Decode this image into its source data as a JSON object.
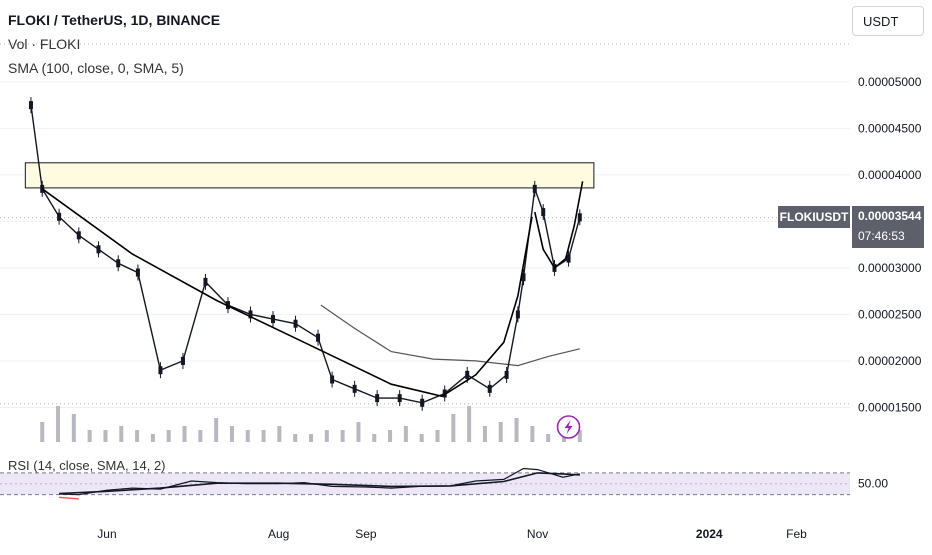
{
  "header": {
    "title": "FLOKI / TetherUS, 1D, BINANCE",
    "vol_label": "Vol · FLOKI",
    "sma_label": "SMA (100, close, 0, SMA, 5)",
    "rsi_label": "RSI (14, close, SMA, 14, 2)",
    "currency_button": "USDT"
  },
  "price_tag": {
    "symbol": "FLOKIUSDT",
    "price": "0.00003544",
    "countdown": "07:46:53"
  },
  "colors": {
    "up": "#26a69a",
    "down": "#ef5350",
    "candle": "#131722",
    "sma": "#555555",
    "rsi_band": "#ece6f7",
    "zone_fill": "#fffbe0",
    "lightning": "#9c27b0"
  },
  "chart_data": {
    "type": "line",
    "title": "FLOKI / TetherUS, 1D, BINANCE",
    "y_axis_ticks": [
      "0.00001500",
      "0.00002000",
      "0.00002500",
      "0.00003000",
      "0.00003500",
      "0.00004000",
      "0.00004500",
      "0.00005000"
    ],
    "y_axis_values": [
      1.5e-05,
      2e-05,
      2.5e-05,
      3e-05,
      3.5e-05,
      4e-05,
      4.5e-05,
      5e-05
    ],
    "x_axis_ticks": [
      "Jun",
      "Aug",
      "Sep",
      "Nov",
      "2024",
      "Feb"
    ],
    "rsi_ticks": [
      "50.00"
    ],
    "ylim": [
      1.15e-05,
      5.45e-05
    ],
    "price_series": {
      "name": "FLOKI / TetherUS",
      "x": [
        "2023-05-05",
        "2023-05-09",
        "2023-05-15",
        "2023-05-22",
        "2023-05-29",
        "2023-06-05",
        "2023-06-12",
        "2023-06-20",
        "2023-06-28",
        "2023-07-06",
        "2023-07-14",
        "2023-07-22",
        "2023-07-30",
        "2023-08-07",
        "2023-08-15",
        "2023-08-20",
        "2023-08-28",
        "2023-09-05",
        "2023-09-13",
        "2023-09-21",
        "2023-09-29",
        "2023-10-07",
        "2023-10-15",
        "2023-10-21",
        "2023-10-25",
        "2023-10-27",
        "2023-10-31",
        "2023-11-03",
        "2023-11-07",
        "2023-11-12",
        "2023-11-16"
      ],
      "y": [
        4.75e-05,
        3.85e-05,
        3.55e-05,
        3.35e-05,
        3.2e-05,
        3.05e-05,
        2.95e-05,
        1.9e-05,
        2e-05,
        2.85e-05,
        2.6e-05,
        2.5e-05,
        2.45e-05,
        2.4e-05,
        2.25e-05,
        1.8e-05,
        1.7e-05,
        1.6e-05,
        1.6e-05,
        1.55e-05,
        1.65e-05,
        1.85e-05,
        1.7e-05,
        1.85e-05,
        2.5e-05,
        2.9e-05,
        3.85e-05,
        3.6e-05,
        3e-05,
        3.1e-05,
        3.544e-05
      ]
    },
    "sma_series": {
      "x": [
        "2023-08-16",
        "2023-08-28",
        "2023-09-10",
        "2023-09-25",
        "2023-10-10",
        "2023-10-25",
        "2023-11-05",
        "2023-11-16"
      ],
      "y": [
        2.6e-05,
        2.35e-05,
        2.1e-05,
        2.02e-05,
        2e-05,
        1.95e-05,
        2.05e-05,
        2.13e-05
      ]
    },
    "annotations": {
      "resistance_zone": [
        3.86e-05,
        4.13e-05
      ],
      "cup_curve": {
        "x": [
          "2023-05-09",
          "2023-06-10",
          "2023-07-10",
          "2023-08-10",
          "2023-09-10",
          "2023-09-28",
          "2023-10-10",
          "2023-10-20",
          "2023-10-25",
          "2023-10-30"
        ],
        "y": [
          3.85e-05,
          3.15e-05,
          2.65e-05,
          2.2e-05,
          1.75e-05,
          1.62e-05,
          1.85e-05,
          2.2e-05,
          2.7e-05,
          3.55e-05
        ]
      },
      "handle_curve": {
        "x": [
          "2023-10-31",
          "2023-11-03",
          "2023-11-07",
          "2023-11-11",
          "2023-11-14",
          "2023-11-17"
        ],
        "y": [
          3.6e-05,
          3.2e-05,
          3e-05,
          3.1e-05,
          3.45e-05,
          3.93e-05
        ]
      }
    },
    "volume_values": [
      5,
      9,
      7,
      3,
      3,
      4,
      3,
      2,
      3,
      4,
      3,
      6,
      4,
      3,
      3,
      4,
      2,
      2,
      3,
      3,
      5,
      2,
      3,
      4,
      2,
      3,
      7,
      9,
      4,
      5,
      6,
      4,
      2,
      3,
      3
    ],
    "rsi_series": {
      "x": [
        "2023-05-15",
        "2023-05-22",
        "2023-06-01",
        "2023-06-10",
        "2023-06-20",
        "2023-07-01",
        "2023-07-10",
        "2023-07-20",
        "2023-08-01",
        "2023-08-10",
        "2023-08-20",
        "2023-09-01",
        "2023-09-10",
        "2023-09-20",
        "2023-10-01",
        "2023-10-10",
        "2023-10-20",
        "2023-10-27",
        "2023-11-01",
        "2023-11-05",
        "2023-11-10",
        "2023-11-16"
      ],
      "y": [
        31,
        30,
        38,
        42,
        40,
        55,
        52,
        50,
        50,
        52,
        45,
        44,
        42,
        45,
        46,
        55,
        58,
        78,
        76,
        70,
        62,
        68
      ]
    },
    "rsi_ma_series": {
      "x": [
        "2023-05-15",
        "2023-06-01",
        "2023-06-20",
        "2023-07-10",
        "2023-08-01",
        "2023-08-20",
        "2023-09-10",
        "2023-10-01",
        "2023-10-20",
        "2023-11-01",
        "2023-11-10",
        "2023-11-16"
      ],
      "y": [
        32,
        36,
        42,
        51,
        51,
        49,
        45,
        46,
        54,
        70,
        68,
        66
      ]
    }
  }
}
